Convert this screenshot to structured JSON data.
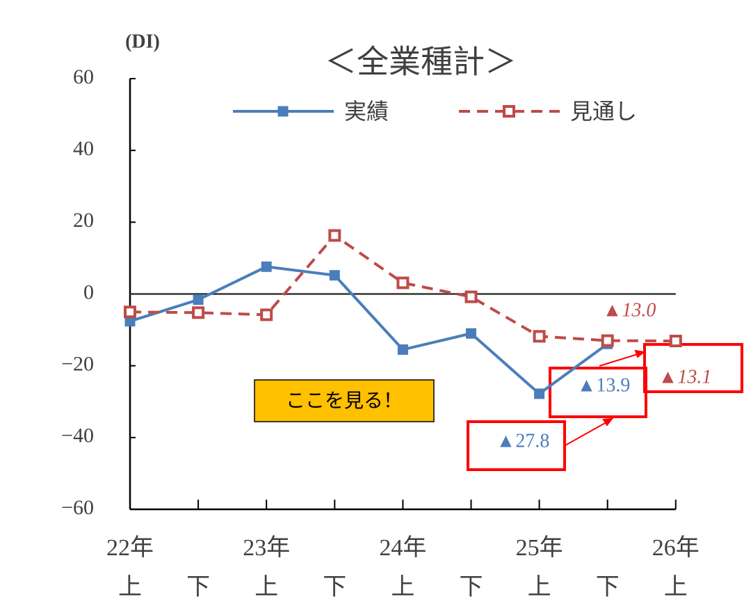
{
  "chart_data": {
    "type": "line",
    "title": "＜全業種計＞",
    "y_label": "(DI)",
    "categories": [
      "上",
      "下",
      "上",
      "下",
      "上",
      "下",
      "上",
      "下",
      "上"
    ],
    "year_labels": [
      "22年",
      "23年",
      "24年",
      "25年",
      "26年"
    ],
    "ylim": [
      -60,
      60
    ],
    "yticks": [
      {
        "value": -60,
        "label": "−60"
      },
      {
        "value": -40,
        "label": "−40"
      },
      {
        "value": -20,
        "label": "−20"
      },
      0,
      20,
      40,
      60
    ],
    "series": [
      {
        "name": "実績",
        "color": "#4a7ebb",
        "dashed": false,
        "values": [
          -7.6,
          -1.6,
          7.6,
          5.2,
          -15.5,
          -11.0,
          -27.8,
          -13.9,
          null
        ],
        "value_labels": [
          null,
          null,
          null,
          null,
          null,
          null,
          "▲27.8",
          "▲13.9",
          null
        ]
      },
      {
        "name": "見通し",
        "color": "#be4b48",
        "dashed": true,
        "values": [
          -5.0,
          -5.2,
          -5.8,
          16.3,
          3.1,
          -0.8,
          -11.8,
          -13.0,
          -13.1
        ],
        "value_labels": [
          null,
          null,
          null,
          null,
          null,
          null,
          null,
          "▲13.0",
          "▲13.1"
        ]
      }
    ],
    "annotation": "ここを見る！"
  }
}
